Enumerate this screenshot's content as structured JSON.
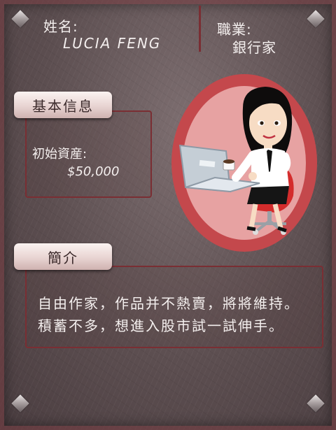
{
  "profile": {
    "name_label": "姓名:",
    "name_value": "LUCIA FENG",
    "job_label": "職業:",
    "job_value": "銀行家"
  },
  "basic_info": {
    "tab_label": "基本信息",
    "asset_label": "初始資産:",
    "asset_value": "$50,000"
  },
  "intro": {
    "tab_label": "簡介",
    "line1": "自由作家，作品并不熱賣，將將維持。",
    "line2": "積蓄不多，想進入股市試一試伸手。"
  },
  "colors": {
    "accent": "#7a2e33",
    "portrait_ring": "#c4484c",
    "portrait_inner": "#e7a2a2"
  },
  "icons": {
    "avatar": "businesswoman-at-laptop-illustration"
  }
}
